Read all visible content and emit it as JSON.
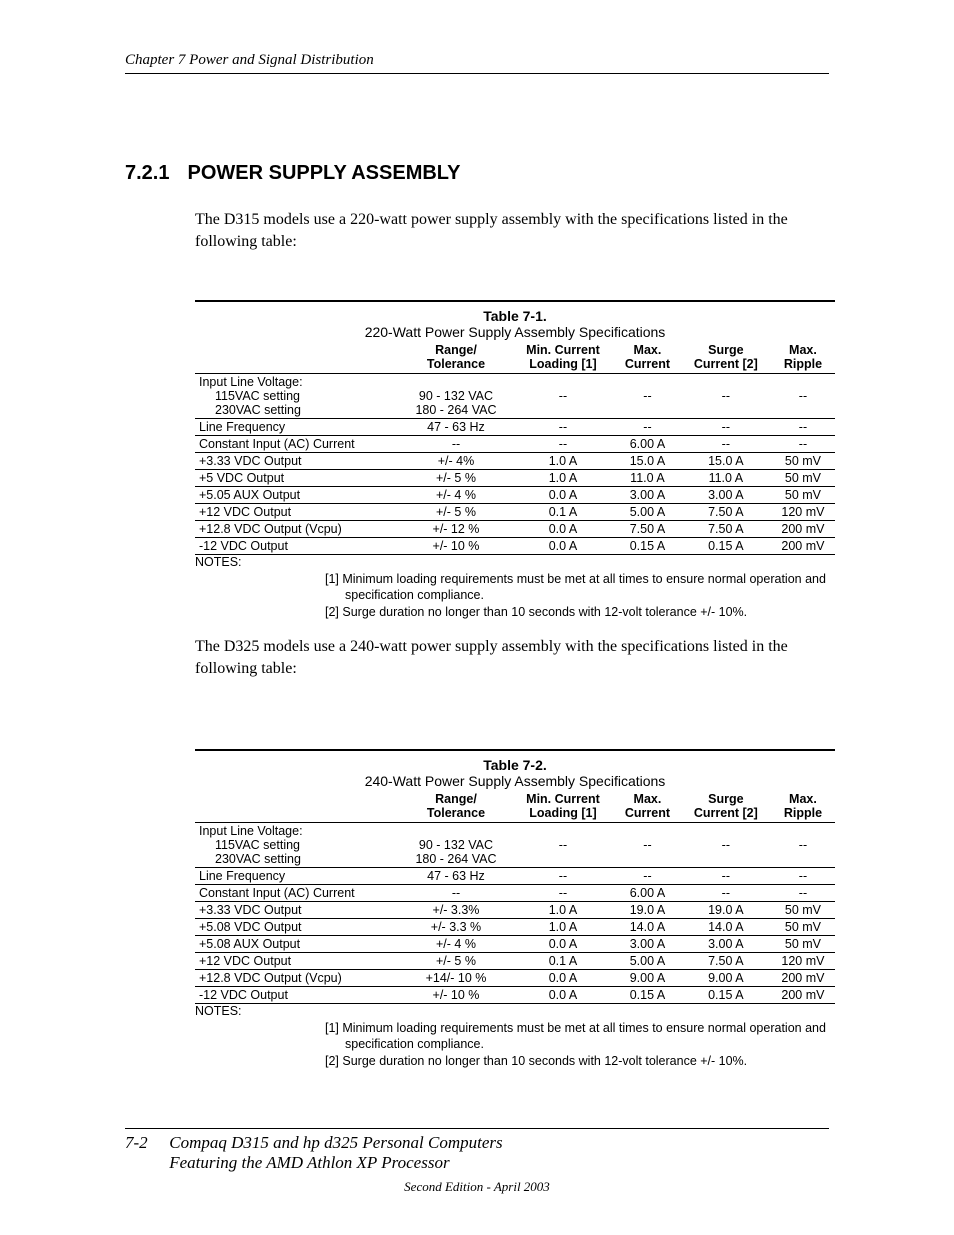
{
  "header": {
    "running": "Chapter 7  Power and Signal Distribution"
  },
  "section": {
    "number": "7.2.1",
    "title": "POWER SUPPLY ASSEMBLY"
  },
  "intro1": "The D315 models use a 220-watt power supply assembly with the specifications listed in the following table:",
  "intro2": "The D325 models use a 240-watt power supply assembly with the specifications listed in the following table:",
  "table_common": {
    "headers": {
      "param": "",
      "range1": "Range/",
      "range2": "Tolerance",
      "min1": "Min. Current",
      "min2": "Loading [1]",
      "max1": "Max.",
      "max2": "Current",
      "surge1": "Surge",
      "surge2": "Current [2]",
      "ripple1": "Max.",
      "ripple2": "Ripple"
    },
    "notes_label": "NOTES:",
    "note1": "[1] Minimum loading requirements must be met at all times to ensure normal operation and specification compliance.",
    "note2": "[2] Surge duration no longer than 10 seconds with 12-volt tolerance +/- 10%."
  },
  "table1": {
    "number": "Table 7-1.",
    "caption": "220-Watt Power Supply Assembly Specifications",
    "rows": [
      {
        "param": "Input Line Voltage:",
        "sub": [
          "115VAC setting",
          "230VAC setting"
        ],
        "range": [
          "",
          "90 - 132 VAC",
          "180 - 264 VAC"
        ],
        "min": "--",
        "max": "--",
        "surge": "--",
        "ripple": "--",
        "multirow": true
      },
      {
        "param": "Line Frequency",
        "range": "47 - 63 Hz",
        "min": "--",
        "max": "--",
        "surge": "--",
        "ripple": "--"
      },
      {
        "param": "Constant Input (AC) Current",
        "range": "--",
        "min": "--",
        "max": "6.00 A",
        "surge": "--",
        "ripple": "--"
      },
      {
        "param": "+3.33 VDC Output",
        "range": "+/- 4%",
        "min": "1.0 A",
        "max": "15.0 A",
        "surge": "15.0 A",
        "ripple": "50 mV"
      },
      {
        "param": "+5 VDC Output",
        "range": "+/- 5 %",
        "min": "1.0 A",
        "max": "11.0 A",
        "surge": "11.0 A",
        "ripple": "50 mV"
      },
      {
        "param": "+5.05 AUX Output",
        "range": "+/- 4 %",
        "min": "0.0 A",
        "max": "3.00 A",
        "surge": "3.00 A",
        "ripple": "50 mV"
      },
      {
        "param": "+12 VDC Output",
        "range": "+/- 5 %",
        "min": "0.1 A",
        "max": "5.00 A",
        "surge": "7.50 A",
        "ripple": "120 mV"
      },
      {
        "param": "+12.8 VDC Output (Vcpu)",
        "range": "+/- 12 %",
        "min": "0.0 A",
        "max": "7.50 A",
        "surge": "7.50 A",
        "ripple": "200 mV"
      },
      {
        "param": "-12 VDC Output",
        "range": "+/- 10 %",
        "min": "0.0 A",
        "max": "0.15 A",
        "surge": "0.15 A",
        "ripple": "200 mV"
      }
    ]
  },
  "table2": {
    "number": "Table 7-2.",
    "caption": "240-Watt Power Supply Assembly Specifications",
    "rows": [
      {
        "param": "Input Line Voltage:",
        "sub": [
          "115VAC setting",
          "230VAC setting"
        ],
        "range": [
          "",
          "90 - 132 VAC",
          "180 - 264 VAC"
        ],
        "min": "--",
        "max": "--",
        "surge": "--",
        "ripple": "--",
        "multirow": true
      },
      {
        "param": "Line Frequency",
        "range": "47 - 63 Hz",
        "min": "--",
        "max": "--",
        "surge": "--",
        "ripple": "--"
      },
      {
        "param": "Constant Input (AC) Current",
        "range": "--",
        "min": "--",
        "max": "6.00 A",
        "surge": "--",
        "ripple": "--"
      },
      {
        "param": "+3.33 VDC Output",
        "range": "+/- 3.3%",
        "min": "1.0 A",
        "max": "19.0 A",
        "surge": "19.0 A",
        "ripple": "50 mV"
      },
      {
        "param": "+5.08 VDC Output",
        "range": "+/- 3.3 %",
        "min": "1.0 A",
        "max": "14.0 A",
        "surge": "14.0 A",
        "ripple": "50 mV"
      },
      {
        "param": "+5.08 AUX Output",
        "range": "+/- 4 %",
        "min": "0.0 A",
        "max": "3.00 A",
        "surge": "3.00 A",
        "ripple": "50 mV"
      },
      {
        "param": "+12 VDC Output",
        "range": "+/- 5 %",
        "min": "0.1 A",
        "max": "5.00 A",
        "surge": "7.50 A",
        "ripple": "120 mV"
      },
      {
        "param": "+12.8 VDC Output (Vcpu)",
        "range": "+14/- 10 %",
        "min": "0.0 A",
        "max": "9.00 A",
        "surge": "9.00 A",
        "ripple": "200 mV"
      },
      {
        "param": "-12 VDC Output",
        "range": "+/- 10 %",
        "min": "0.0 A",
        "max": "0.15 A",
        "surge": "0.15 A",
        "ripple": "200 mV"
      }
    ]
  },
  "footer": {
    "page": "7-2",
    "title_line1": "Compaq D315 and hp d325 Personal Computers",
    "title_line2": "Featuring the AMD Athlon XP Processor",
    "edition": "Second Edition - April 2003"
  }
}
